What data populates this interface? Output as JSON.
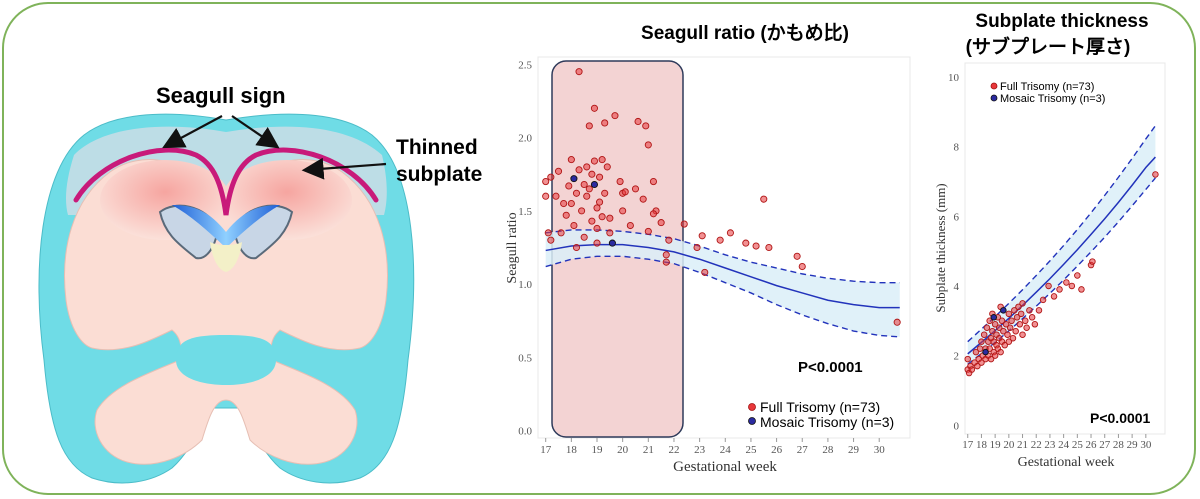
{
  "diagram": {
    "label_seagull_sign": "Seagull sign",
    "label_thinned_line1": "Thinned",
    "label_thinned_line2": "subplate"
  },
  "colors": {
    "full_trisomy": "#e8373a",
    "mosaic_trisomy": "#2b2ba0",
    "fit_line": "#2233bb",
    "band_fill": "#dbeef8",
    "highlight_box": "#f3d3d3",
    "frame": "#7fb35a"
  },
  "chart_data": [
    {
      "type": "scatter",
      "title": "Seagull ratio (かもめ比)",
      "xlabel": "Gestational week",
      "ylabel": "Seagull ratio",
      "xlim": [
        16.7,
        31.2
      ],
      "ylim": [
        -0.05,
        2.55
      ],
      "xticks": [
        17,
        18,
        19,
        20,
        21,
        22,
        23,
        24,
        25,
        26,
        27,
        28,
        29,
        30
      ],
      "yticks": [
        0.0,
        0.5,
        1.0,
        1.5,
        2.0,
        2.5
      ],
      "ytick_labels": [
        "0.0",
        "0.5",
        "1.0",
        "1.5",
        "2.0",
        "2.5"
      ],
      "grid": false,
      "legend_position": "bottom-right",
      "annotation": "P<0.0001",
      "highlight_range_x": [
        17,
        22
      ],
      "series": [
        {
          "name": "Full Trisomy (n=73)",
          "points": [
            [
              17.0,
              1.6
            ],
            [
              17.0,
              1.7
            ],
            [
              17.1,
              1.35
            ],
            [
              17.2,
              1.3
            ],
            [
              17.2,
              1.73
            ],
            [
              17.4,
              1.6
            ],
            [
              17.5,
              1.77
            ],
            [
              17.6,
              1.35
            ],
            [
              17.7,
              1.55
            ],
            [
              17.8,
              1.47
            ],
            [
              17.9,
              1.67
            ],
            [
              18.0,
              1.85
            ],
            [
              18.0,
              1.55
            ],
            [
              18.1,
              1.4
            ],
            [
              18.2,
              1.62
            ],
            [
              18.3,
              1.78
            ],
            [
              18.3,
              2.45
            ],
            [
              18.4,
              1.5
            ],
            [
              18.5,
              1.68
            ],
            [
              18.5,
              1.32
            ],
            [
              18.6,
              1.8
            ],
            [
              18.6,
              1.6
            ],
            [
              18.7,
              2.08
            ],
            [
              18.7,
              1.65
            ],
            [
              18.8,
              1.75
            ],
            [
              18.8,
              1.43
            ],
            [
              18.9,
              2.2
            ],
            [
              18.9,
              1.84
            ],
            [
              19.0,
              1.52
            ],
            [
              19.0,
              1.38
            ],
            [
              19.0,
              1.28
            ],
            [
              19.1,
              1.73
            ],
            [
              19.1,
              1.56
            ],
            [
              19.2,
              1.85
            ],
            [
              19.2,
              1.46
            ],
            [
              19.3,
              2.1
            ],
            [
              19.3,
              1.62
            ],
            [
              19.4,
              1.8
            ],
            [
              19.5,
              1.45
            ],
            [
              19.5,
              1.35
            ],
            [
              19.7,
              2.15
            ],
            [
              19.9,
              1.7
            ],
            [
              20.0,
              1.62
            ],
            [
              20.0,
              1.5
            ],
            [
              20.1,
              1.63
            ],
            [
              20.3,
              1.4
            ],
            [
              20.5,
              1.65
            ],
            [
              20.6,
              2.11
            ],
            [
              20.8,
              1.58
            ],
            [
              20.9,
              2.08
            ],
            [
              21.0,
              1.36
            ],
            [
              21.0,
              1.95
            ],
            [
              21.2,
              1.7
            ],
            [
              21.3,
              1.5
            ],
            [
              21.5,
              1.42
            ],
            [
              21.7,
              1.2
            ],
            [
              21.7,
              1.15
            ],
            [
              21.8,
              1.3
            ],
            [
              22.4,
              1.41
            ],
            [
              22.9,
              1.25
            ],
            [
              23.1,
              1.33
            ],
            [
              23.2,
              1.08
            ],
            [
              23.8,
              1.3
            ],
            [
              24.2,
              1.35
            ],
            [
              24.8,
              1.28
            ],
            [
              25.2,
              1.26
            ],
            [
              25.5,
              1.58
            ],
            [
              25.7,
              1.25
            ],
            [
              26.8,
              1.19
            ],
            [
              27.0,
              1.12
            ],
            [
              30.7,
              0.74
            ],
            [
              21.2,
              1.48
            ],
            [
              18.2,
              1.25
            ]
          ]
        },
        {
          "name": "Mosaic Trisomy (n=3)",
          "points": [
            [
              18.1,
              1.72
            ],
            [
              18.9,
              1.68
            ],
            [
              19.6,
              1.28
            ]
          ]
        }
      ],
      "fit": {
        "x": [
          17,
          18,
          19,
          20,
          21,
          22,
          23,
          24,
          25,
          26,
          27,
          28,
          29,
          30,
          30.8
        ],
        "mean": [
          1.23,
          1.26,
          1.27,
          1.27,
          1.25,
          1.22,
          1.17,
          1.11,
          1.05,
          0.99,
          0.94,
          0.89,
          0.86,
          0.84,
          0.84
        ],
        "lower": [
          1.12,
          1.17,
          1.19,
          1.19,
          1.17,
          1.14,
          1.08,
          1.01,
          0.94,
          0.86,
          0.79,
          0.73,
          0.68,
          0.65,
          0.64
        ],
        "upper": [
          1.35,
          1.37,
          1.37,
          1.36,
          1.34,
          1.31,
          1.26,
          1.2,
          1.15,
          1.11,
          1.07,
          1.04,
          1.02,
          1.01,
          1.01
        ]
      }
    },
    {
      "type": "scatter",
      "title": "Subplate thickness",
      "subtitle": "(サブプレート厚さ)",
      "xlabel": "Gestational week",
      "ylabel": "Subplate thickness (mm)",
      "xlim": [
        16.8,
        31.4
      ],
      "ylim": [
        -0.25,
        10.4
      ],
      "xticks": [
        17,
        18,
        19,
        20,
        21,
        22,
        23,
        24,
        25,
        26,
        27,
        28,
        29,
        30
      ],
      "yticks": [
        0,
        2,
        4,
        6,
        8,
        10
      ],
      "grid": false,
      "legend_position": "top-left",
      "annotation": "P<0.0001",
      "series": [
        {
          "name": "Full Trisomy (n=73)",
          "points": [
            [
              17.0,
              1.6
            ],
            [
              17.0,
              1.9
            ],
            [
              17.1,
              1.5
            ],
            [
              17.2,
              1.7
            ],
            [
              17.3,
              1.6
            ],
            [
              17.5,
              1.8
            ],
            [
              17.6,
              2.1
            ],
            [
              17.7,
              1.7
            ],
            [
              17.8,
              1.9
            ],
            [
              17.9,
              2.2
            ],
            [
              18.0,
              1.8
            ],
            [
              18.0,
              2.4
            ],
            [
              18.1,
              2.0
            ],
            [
              18.2,
              2.6
            ],
            [
              18.3,
              1.9
            ],
            [
              18.3,
              2.2
            ],
            [
              18.4,
              2.8
            ],
            [
              18.5,
              2.0
            ],
            [
              18.5,
              2.4
            ],
            [
              18.6,
              3.0
            ],
            [
              18.6,
              2.2
            ],
            [
              18.7,
              2.5
            ],
            [
              18.7,
              1.9
            ],
            [
              18.8,
              2.7
            ],
            [
              18.8,
              3.2
            ],
            [
              18.9,
              2.1
            ],
            [
              18.9,
              2.4
            ],
            [
              19.0,
              2.9
            ],
            [
              19.0,
              2.0
            ],
            [
              19.1,
              2.3
            ],
            [
              19.1,
              2.6
            ],
            [
              19.2,
              3.1
            ],
            [
              19.2,
              2.2
            ],
            [
              19.3,
              2.5
            ],
            [
              19.3,
              2.8
            ],
            [
              19.4,
              2.1
            ],
            [
              19.5,
              2.4
            ],
            [
              19.5,
              3.0
            ],
            [
              19.6,
              2.7
            ],
            [
              19.7,
              2.3
            ],
            [
              19.8,
              2.9
            ],
            [
              19.9,
              2.6
            ],
            [
              20.0,
              3.2
            ],
            [
              20.0,
              2.4
            ],
            [
              20.1,
              2.8
            ],
            [
              20.2,
              3.0
            ],
            [
              20.3,
              2.5
            ],
            [
              20.4,
              3.3
            ],
            [
              20.5,
              2.7
            ],
            [
              20.6,
              3.1
            ],
            [
              20.7,
              3.4
            ],
            [
              20.8,
              2.9
            ],
            [
              20.9,
              3.2
            ],
            [
              21.0,
              2.6
            ],
            [
              21.0,
              3.5
            ],
            [
              21.2,
              3.0
            ],
            [
              21.3,
              2.8
            ],
            [
              21.5,
              3.3
            ],
            [
              21.7,
              3.1
            ],
            [
              21.9,
              2.9
            ],
            [
              22.2,
              3.3
            ],
            [
              22.5,
              3.6
            ],
            [
              22.9,
              4.0
            ],
            [
              23.3,
              3.7
            ],
            [
              23.7,
              3.9
            ],
            [
              24.2,
              4.1
            ],
            [
              24.6,
              4.0
            ],
            [
              25.0,
              4.3
            ],
            [
              25.3,
              3.9
            ],
            [
              26.0,
              4.6
            ],
            [
              26.1,
              4.7
            ],
            [
              30.7,
              7.2
            ],
            [
              19.4,
              3.4
            ]
          ]
        },
        {
          "name": "Mosaic Trisomy (n=3)",
          "points": [
            [
              18.3,
              2.1
            ],
            [
              18.9,
              3.1
            ],
            [
              19.6,
              3.3
            ]
          ]
        }
      ],
      "fit": {
        "x": [
          17,
          18,
          19,
          20,
          21,
          22,
          23,
          24,
          25,
          26,
          27,
          28,
          29,
          30,
          30.7
        ],
        "mean": [
          2.05,
          2.38,
          2.72,
          3.07,
          3.44,
          3.82,
          4.21,
          4.62,
          5.04,
          5.48,
          5.93,
          6.4,
          6.89,
          7.4,
          7.7
        ],
        "lower": [
          1.75,
          2.06,
          2.38,
          2.71,
          3.06,
          3.42,
          3.79,
          4.17,
          4.57,
          4.98,
          5.4,
          5.84,
          6.3,
          6.77,
          7.1
        ],
        "upper": [
          2.4,
          2.76,
          3.12,
          3.5,
          3.89,
          4.3,
          4.72,
          5.16,
          5.62,
          6.1,
          6.6,
          7.12,
          7.66,
          8.22,
          8.6
        ]
      }
    }
  ]
}
